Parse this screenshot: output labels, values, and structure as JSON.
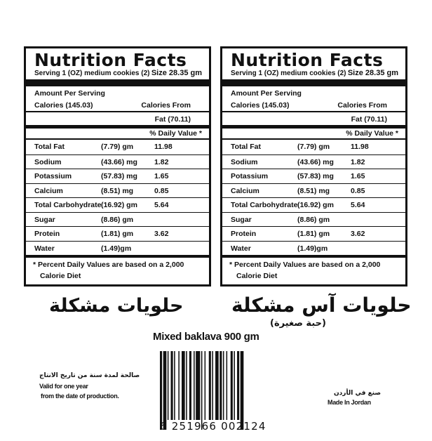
{
  "panels": [
    {
      "title": "Nutrition Facts",
      "serving": "Serving 1 (OZ) medium cookies (2)",
      "size": "Size 28.35 gm",
      "amount_per_serving": "Amount Per Serving",
      "calories": "Calories (145.03)",
      "calories_from": "Calories From",
      "fat_calories": "Fat (70.11)",
      "daily_value_header": "% Daily Value *",
      "rows": [
        {
          "name": "Total Fat",
          "amount": "(7.79) gm",
          "dv": "11.98"
        },
        {
          "name": "Sodium",
          "amount": "(43.66) mg",
          "dv": "1.82"
        },
        {
          "name": "Potassium",
          "amount": "(57.83) mg",
          "dv": "1.65"
        },
        {
          "name": "Calcium",
          "amount": "(8.51) mg",
          "dv": "0.85"
        },
        {
          "name": "Total Carbohydrate",
          "amount": "(16.92) gm",
          "dv": "5.64"
        },
        {
          "name": "Sugar",
          "amount": "(8.86) gm",
          "dv": ""
        },
        {
          "name": "Protein",
          "amount": "(1.81) gm",
          "dv": "3.62"
        },
        {
          "name": "Water",
          "amount": "(1.49)gm",
          "dv": ""
        }
      ],
      "footnote_1": "* Percent Daily Values are based on a 2,000",
      "footnote_2": "Calorie Diet"
    },
    {
      "title": "Nutrition Facts",
      "serving": "Serving 1 (OZ) medium cookies (2)",
      "size": "Size 28.35 gm",
      "amount_per_serving": "Amount Per Serving",
      "calories": "Calories (145.03)",
      "calories_from": "Calories From",
      "fat_calories": "Fat (70.11)",
      "daily_value_header": "% Daily Value *",
      "rows": [
        {
          "name": "Total Fat",
          "amount": "(7.79) gm",
          "dv": "11.98"
        },
        {
          "name": "Sodium",
          "amount": "(43.66) mg",
          "dv": "1.82"
        },
        {
          "name": "Potassium",
          "amount": "(57.83) mg",
          "dv": "1.65"
        },
        {
          "name": "Calcium",
          "amount": "(8.51) mg",
          "dv": "0.85"
        },
        {
          "name": "Total Carbohydrate",
          "amount": "(16.92) gm",
          "dv": "5.64"
        },
        {
          "name": "Sugar",
          "amount": "(8.86) gm",
          "dv": ""
        },
        {
          "name": "Protein",
          "amount": "(1.81) gm",
          "dv": "3.62"
        },
        {
          "name": "Water",
          "amount": "(1.49)gm",
          "dv": ""
        }
      ],
      "footnote_1": "* Percent Daily Values are based on a 2,000",
      "footnote_2": "Calorie Diet"
    }
  ],
  "arabic_left_title": "حلويات مشكلة",
  "arabic_right_title": "حلويات آس مشكلة",
  "arabic_right_subtitle": "(حبة صغيرة)",
  "product_name": "Mixed baklava 900 gm",
  "validity_arabic": "صالحة لمدة سنة من تاريخ الانتاج",
  "validity_1": "Valid for one year",
  "validity_2": "from the date of production.",
  "origin_arabic": "صنع في الأردن",
  "origin": "Made In Jordan",
  "barcode_number": "6 251966 002124"
}
